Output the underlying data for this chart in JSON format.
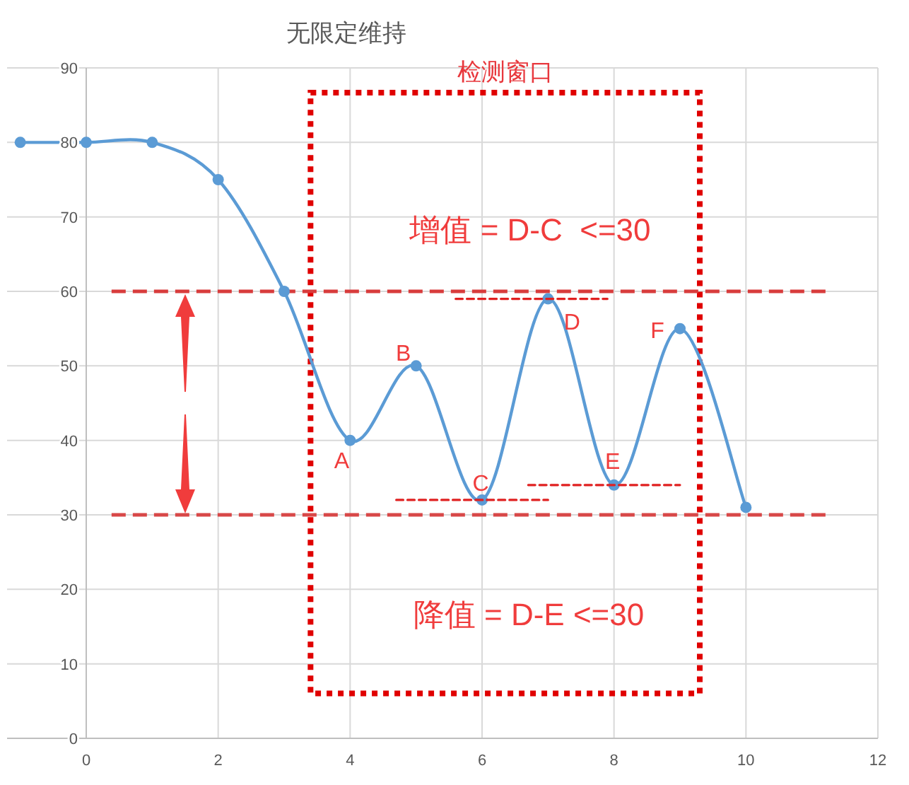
{
  "chart_data": {
    "type": "line",
    "title": "无限定维持",
    "x": [
      -1,
      0,
      1,
      2,
      3,
      4,
      5,
      6,
      7,
      8,
      9,
      10
    ],
    "series": [
      {
        "color": "#5b9bd5",
        "values": [
          80,
          80,
          80,
          75,
          60,
          40,
          50,
          32,
          59,
          34,
          55,
          31
        ]
      },
      {
        "x": [
          5.6,
          7.9
        ],
        "values": [
          59,
          59
        ],
        "color": "#e02020",
        "line_style": "dashed",
        "marker": "none"
      },
      {
        "x": [
          4.7,
          7.0
        ],
        "values": [
          32,
          32
        ],
        "color": "#e02020",
        "line_style": "dashed",
        "marker": "none"
      },
      {
        "x": [
          6.7,
          9.0
        ],
        "values": [
          34,
          34
        ],
        "color": "#e02020",
        "line_style": "dashed",
        "marker": "none"
      }
    ],
    "marker": "circle",
    "xlim": [
      -1.2,
      12
    ],
    "xticks": [
      0,
      2,
      4,
      6,
      8,
      10,
      12
    ],
    "ylim": [
      0,
      90
    ],
    "yticks": [
      0,
      10,
      20,
      30,
      40,
      50,
      60,
      70,
      80,
      90
    ],
    "grid": true,
    "ref_lines": [
      {
        "axis": "y",
        "value": 60,
        "color": "#d83c3c",
        "line_style": "dashed"
      },
      {
        "axis": "y",
        "value": 30,
        "color": "#d84848",
        "line_style": "dashed"
      }
    ],
    "annotations": [
      "检测窗口",
      "增值 = D-C  <=30",
      "降值 = D-E <=30",
      {
        "text": "A",
        "x": 4,
        "y": 40
      },
      {
        "text": "B",
        "x": 5,
        "y": 50
      },
      {
        "text": "C",
        "x": 6,
        "y": 32
      },
      {
        "text": "D",
        "x": 7,
        "y": 59
      },
      {
        "text": "E",
        "x": 8,
        "y": 34
      },
      {
        "text": "F",
        "x": 9,
        "y": 55
      }
    ]
  }
}
